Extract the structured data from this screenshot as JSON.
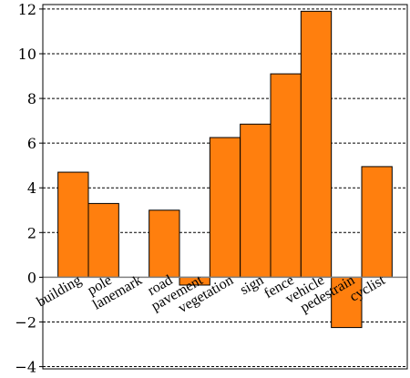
{
  "chart_data": {
    "type": "bar",
    "categories": [
      "building",
      "pole",
      "lanemark",
      "road",
      "pavement",
      "vegetation",
      "sign",
      "fence",
      "vehicle",
      "pedestrain",
      "cyclist"
    ],
    "values": [
      4.7,
      3.3,
      0.0,
      3.0,
      -0.35,
      6.25,
      6.85,
      9.1,
      11.9,
      -2.25,
      4.95
    ],
    "title": "",
    "xlabel": "",
    "ylabel": "",
    "ylim": [
      -4.1,
      12.2
    ],
    "yticks": [
      -4,
      -2,
      0,
      2,
      4,
      6,
      8,
      10,
      12
    ],
    "ytick_labels": [
      "−4",
      "−2",
      "0",
      "2",
      "4",
      "6",
      "8",
      "10",
      "12"
    ],
    "grid": "horizontal dashed",
    "legend": "none",
    "colors": {
      "bar": "#ff7f0e",
      "bar_edge": "#000000",
      "grid": "#000000",
      "zero_line": "#808080"
    }
  }
}
